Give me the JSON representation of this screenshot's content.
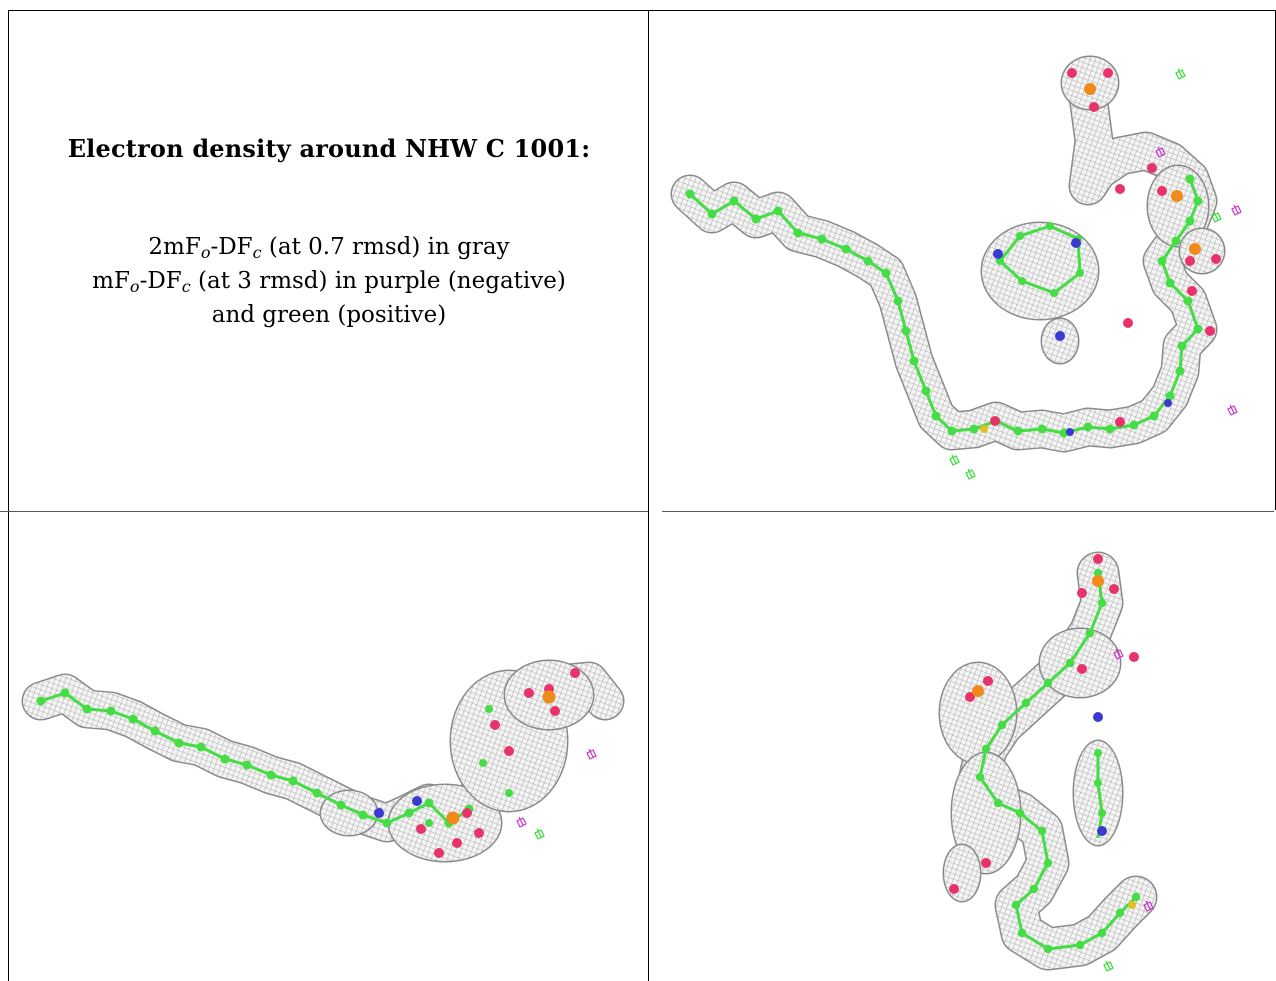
{
  "table": {
    "title": "Electron density around NHW C 1001:",
    "legend": {
      "line1": {
        "a": "2mF",
        "a_sub": "o",
        "b": "-DF",
        "b_sub": "c",
        "tail": " (at 0.7 rmsd) in gray"
      },
      "line2": {
        "a": "mF",
        "a_sub": "o",
        "b": "-DF",
        "b_sub": "c",
        "tail": " (at 3 rmsd) in purple (negative)"
      },
      "line3": "and green (positive)"
    }
  },
  "colors": {
    "mesh_gray": "#9a9a9a",
    "carbon_green": "#44dd44",
    "oxygen_red": "#e8336a",
    "nitrogen_blue": "#3a3ad0",
    "phosphorus_orange": "#f08a1a",
    "sulfur_yellow": "#e0c020",
    "negative_purple": "#cc33cc",
    "positive_green": "#33dd33"
  },
  "panels": [
    {
      "name": "view-top-right",
      "icon": "electron-density-view-1"
    },
    {
      "name": "view-bottom-left",
      "icon": "electron-density-view-2"
    },
    {
      "name": "view-bottom-right",
      "icon": "electron-density-view-3"
    }
  ]
}
